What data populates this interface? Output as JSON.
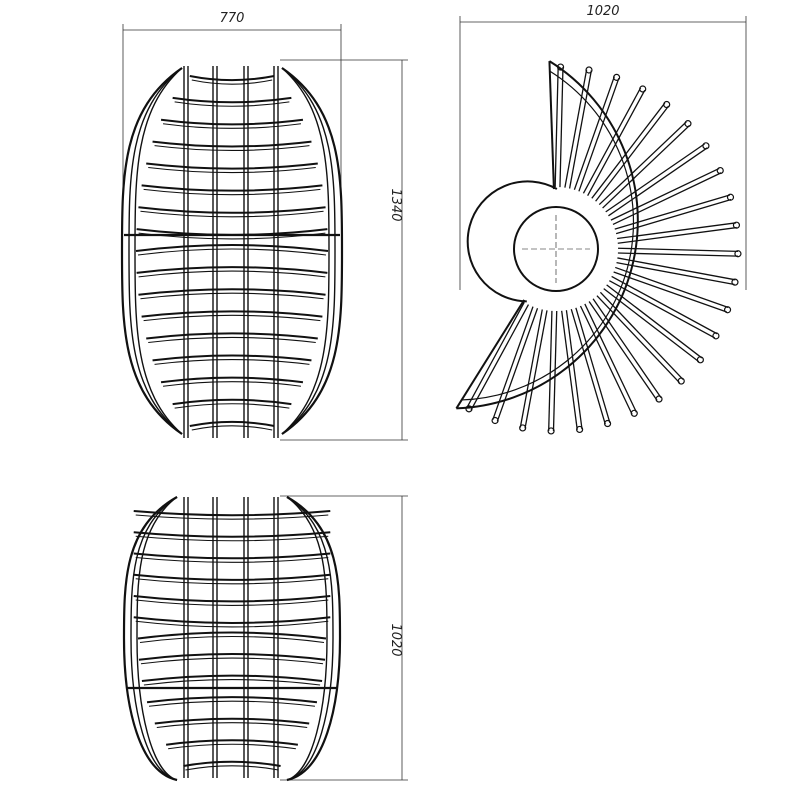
{
  "dimensions": {
    "front_width": "770",
    "front_height": "1340",
    "plan_width": "1020",
    "side_height": "1020"
  },
  "colors": {
    "line": "#111111",
    "dimension_line": "#333333",
    "background": "#ffffff"
  }
}
